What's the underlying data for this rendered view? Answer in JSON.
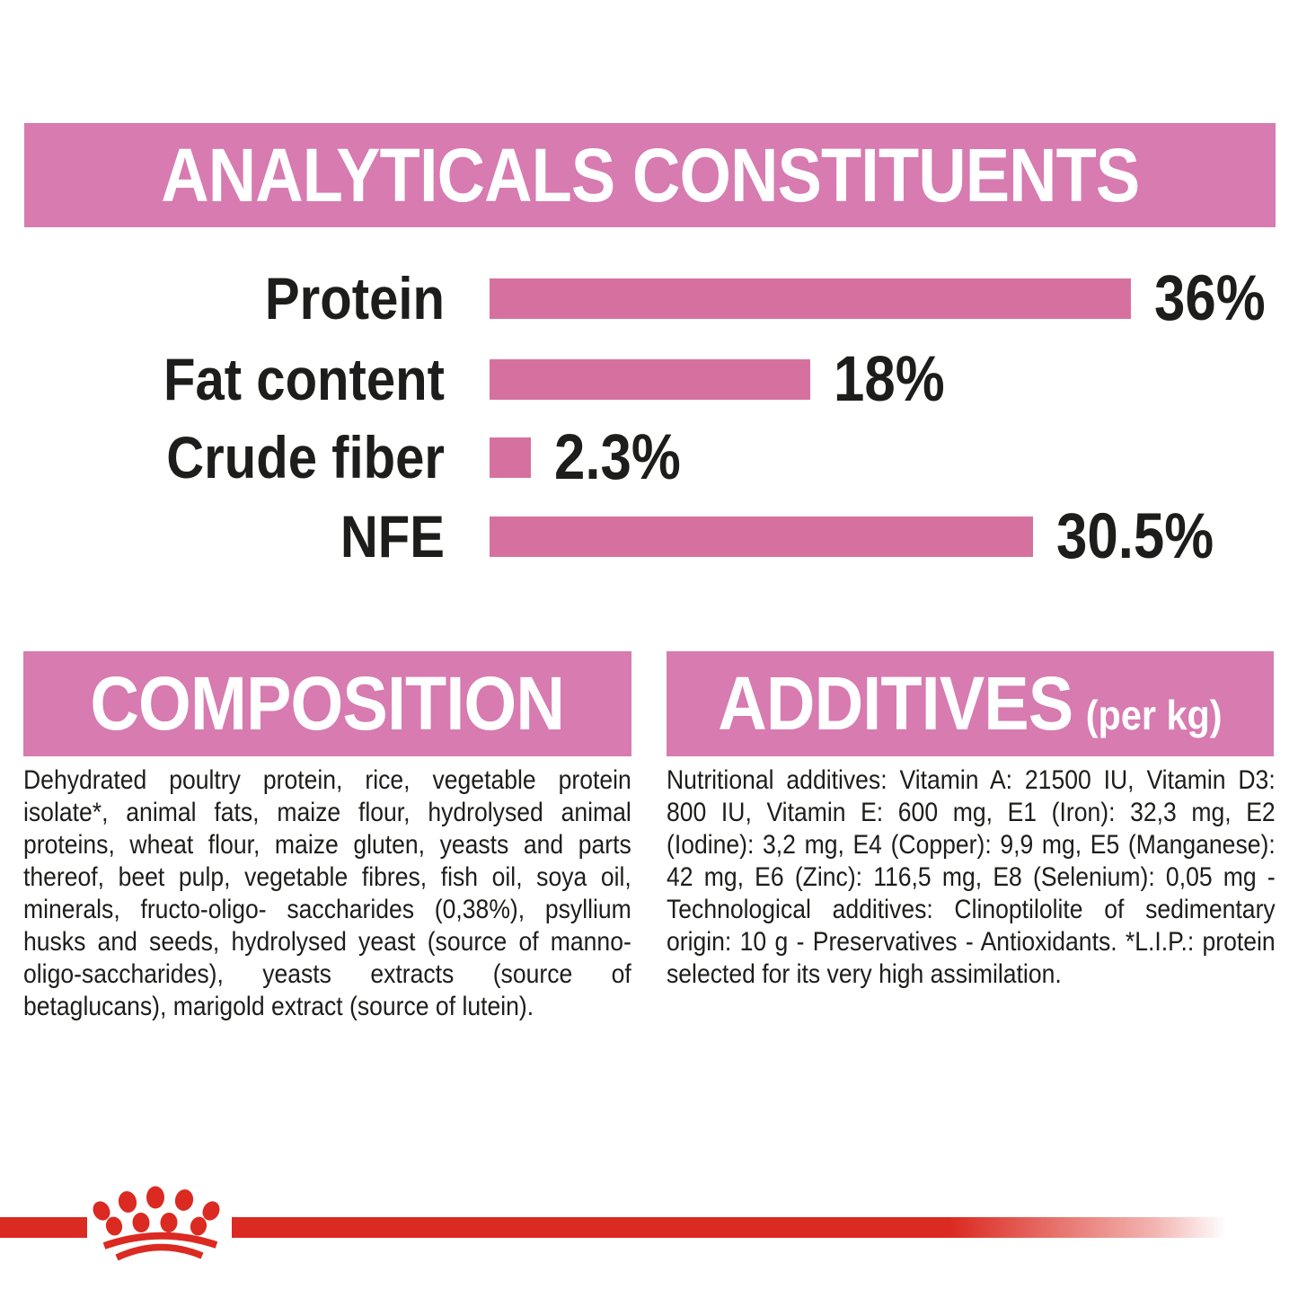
{
  "colors": {
    "header_pink": "#D77BB0",
    "bar_pink": "#D6719F",
    "brand_red": "#DB2A21",
    "text_black": "#1d1d1b"
  },
  "analytics_header": {
    "title": "ANALYTICALS CONSTITUENTS"
  },
  "chart_data": {
    "type": "bar",
    "orientation": "horizontal",
    "title": "ANALYTICALS CONSTITUENTS",
    "categories": [
      "Protein",
      "Fat content",
      "Crude fiber",
      "NFE"
    ],
    "values": [
      36,
      18,
      2.3,
      30.5
    ],
    "value_labels": [
      "36%",
      "18%",
      "2.3%",
      "30.5%"
    ],
    "xlabel": "",
    "ylabel": "",
    "xlim": [
      0,
      40
    ],
    "grid": false,
    "legend": false,
    "bar_color": "#D6719F"
  },
  "composition": {
    "heading": "COMPOSITION",
    "text": "Dehydrated poultry protein, rice, vegetable protein isolate*, animal fats, maize flour, hydrolysed animal proteins, wheat flour, maize gluten, yeasts and parts thereof, beet pulp, vegetable fibres, fish oil, soya oil, minerals, fructo-oligo- saccharides (0,38%), psyllium husks and seeds, hydrolysed yeast (source of manno-oligo-saccharides), yeasts extracts (source of betaglucans), marigold extract (source of lutein)."
  },
  "additives": {
    "heading": "ADDITIVES",
    "heading_suffix": "(per kg)",
    "text": "Nutritional additives: Vitamin A: 21500 IU, Vitamin D3: 800 IU, Vitamin E: 600 mg, E1 (Iron): 32,3 mg, E2 (Iodine): 3,2 mg, E4 (Copper): 9,9 mg, E5 (Manganese): 42 mg, E6 (Zinc): 116,5 mg, E8 (Selenium): 0,05 mg - Technological additives: Clinoptilolite of sedimentary origin: 10 g - Preservatives - Antioxidants. *L.I.P.: protein selected for its very high assimilation."
  },
  "footer": {
    "logo": "royal-canin-crown-logo"
  }
}
